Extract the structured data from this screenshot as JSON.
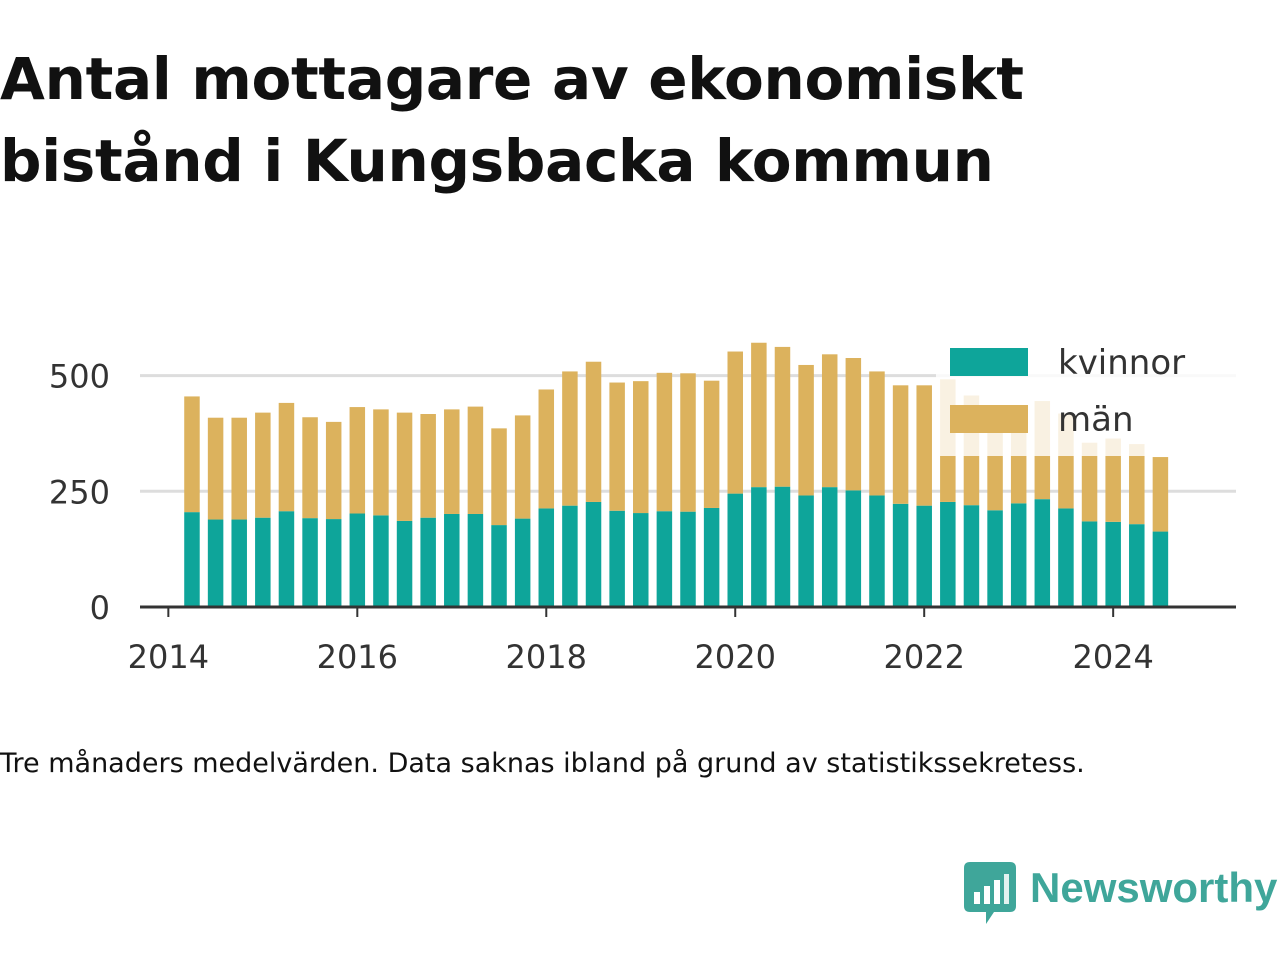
{
  "title": "Antal mottagare av ekonomiskt bistånd i Kungsbacka kommun",
  "caption": "Tre månaders medelvärden. Data saknas ibland på grund av statistikssekretess.",
  "brand": {
    "name": "Newsworthy"
  },
  "colors": {
    "kvinnor": "#0ea59a",
    "man": "#dcb25d",
    "grid": "#dddddd",
    "axis": "#333333",
    "brand": "#3fa69a"
  },
  "chart_data": {
    "type": "bar",
    "stacked": true,
    "title": "Antal mottagare av ekonomiskt bistånd i Kungsbacka kommun",
    "xlabel": "",
    "ylabel": "",
    "xlim": [
      2013.7,
      2025.3
    ],
    "ylim": [
      0,
      580
    ],
    "yticks": [
      0,
      250,
      500
    ],
    "xticks": [
      2014,
      2016,
      2018,
      2020,
      2022,
      2024
    ],
    "grid": true,
    "legend_position": "top-right",
    "x": [
      2014.25,
      2014.5,
      2014.75,
      2015.0,
      2015.25,
      2015.5,
      2015.75,
      2016.0,
      2016.25,
      2016.5,
      2016.75,
      2017.0,
      2017.25,
      2017.5,
      2017.75,
      2018.0,
      2018.25,
      2018.5,
      2018.75,
      2019.0,
      2019.25,
      2019.5,
      2019.75,
      2020.0,
      2020.25,
      2020.5,
      2020.75,
      2021.0,
      2021.25,
      2021.5,
      2021.75,
      2022.0,
      2022.25,
      2022.5,
      2022.75,
      2023.0,
      2023.25,
      2023.5,
      2023.75,
      2024.0,
      2024.25,
      2024.5
    ],
    "series": [
      {
        "name": "kvinnor",
        "values": [
          205,
          189,
          189,
          193,
          207,
          192,
          190,
          202,
          198,
          186,
          193,
          201,
          201,
          177,
          191,
          213,
          219,
          227,
          208,
          203,
          207,
          206,
          214,
          245,
          259,
          260,
          241,
          259,
          252,
          241,
          223,
          219,
          227,
          220,
          209,
          224,
          233,
          213,
          185,
          184,
          179,
          163
        ]
      },
      {
        "name": "män",
        "values": [
          250,
          220,
          220,
          227,
          234,
          218,
          210,
          230,
          229,
          234,
          224,
          226,
          232,
          209,
          223,
          257,
          290,
          303,
          277,
          285,
          299,
          299,
          275,
          307,
          312,
          302,
          282,
          287,
          286,
          268,
          256,
          260,
          265,
          237,
          222,
          212,
          212,
          205,
          170,
          180,
          173,
          161
        ]
      }
    ]
  }
}
